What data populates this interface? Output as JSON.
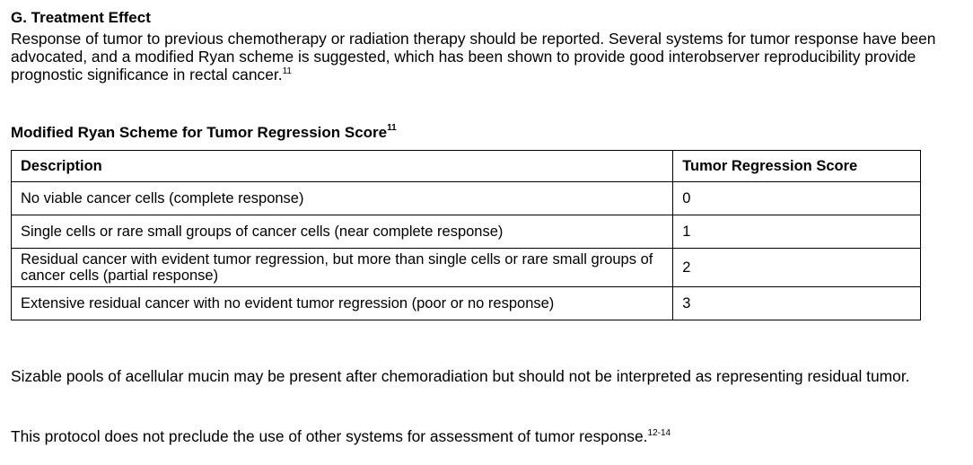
{
  "section": {
    "heading": "G. Treatment Effect",
    "intro_text": "Response of tumor to previous chemotherapy or radiation therapy should be reported. Several systems for tumor response have been advocated, and a modified Ryan scheme is suggested, which has been shown to provide good interobserver reproducibility provide prognostic significance in rectal cancer.",
    "intro_ref": "11"
  },
  "table": {
    "title": "Modified Ryan Scheme for Tumor Regression Score",
    "title_ref": "11",
    "headers": [
      "Description",
      "Tumor Regression Score"
    ],
    "rows": [
      {
        "description": "No viable cancer cells (complete response)",
        "score": "0"
      },
      {
        "description": "Single cells or rare small groups of cancer cells (near complete response)",
        "score": "1"
      },
      {
        "description": "Residual cancer with evident tumor regression, but more than single cells or rare small groups of cancer cells (partial response)",
        "score": "2"
      },
      {
        "description": "Extensive residual cancer with no evident tumor regression (poor or no response)",
        "score": "3"
      }
    ]
  },
  "notes": {
    "mucin": "Sizable pools of acellular mucin may be present after chemoradiation but should not be interpreted as representing residual tumor.",
    "protocol": "This protocol does not preclude the use of other systems for assessment of tumor response.",
    "protocol_ref": "12-14"
  }
}
